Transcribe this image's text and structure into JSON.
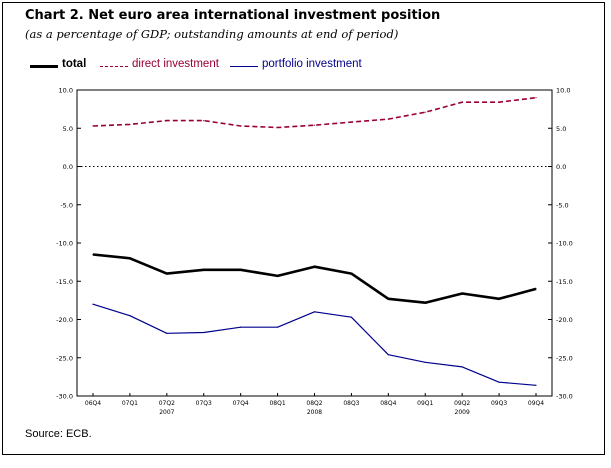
{
  "title": "Chart 2. Net euro area international investment position",
  "subtitle": "(as a percentage of GDP; outstanding amounts at end of period)",
  "source": "Source: ECB.",
  "chart_data": {
    "type": "line",
    "categories": [
      "06Q4",
      "07Q1",
      "07Q2",
      "07Q3",
      "07Q4",
      "08Q1",
      "08Q2",
      "08Q3",
      "08Q4",
      "09Q1",
      "09Q2",
      "09Q3",
      "09Q4"
    ],
    "year_labels": [
      {
        "label": "2007",
        "at": "07Q2"
      },
      {
        "label": "2008",
        "at": "08Q2"
      },
      {
        "label": "2009",
        "at": "09Q2"
      }
    ],
    "ylim": [
      -30,
      10
    ],
    "yticks_left": [
      "10.0",
      "5.0",
      "0.0",
      "-5.0",
      "-10.0",
      "-15.0",
      "-20.0",
      "-25.0",
      "-30.0"
    ],
    "yticks_right": [
      "10.0",
      "5.0",
      "0.0",
      "-5.0",
      "-10.0",
      "-15.0",
      "-20.0",
      "-25.0",
      "-30.0"
    ],
    "zero_line": "dotted",
    "grid": false,
    "legend_position": "top-left",
    "series": [
      {
        "name": "total",
        "color": "#000000",
        "style": "solid-bold",
        "values": [
          -11.5,
          -12.0,
          -14.0,
          -13.5,
          -13.5,
          -14.3,
          -13.1,
          -14.0,
          -17.3,
          -17.8,
          -16.6,
          -17.3,
          -16.0
        ]
      },
      {
        "name": "direct investment",
        "color": "#990033",
        "style": "dashed",
        "values": [
          5.3,
          5.5,
          6.0,
          6.0,
          5.3,
          5.1,
          5.4,
          5.8,
          6.2,
          7.1,
          8.4,
          8.4,
          9.0
        ]
      },
      {
        "name": "portfolio investment",
        "color": "#00008b",
        "style": "solid",
        "values": [
          -18.0,
          -19.5,
          -21.8,
          -21.7,
          -21.0,
          -21.0,
          -19.0,
          -19.7,
          -24.6,
          -25.6,
          -26.2,
          -28.2,
          -28.6
        ]
      }
    ]
  }
}
